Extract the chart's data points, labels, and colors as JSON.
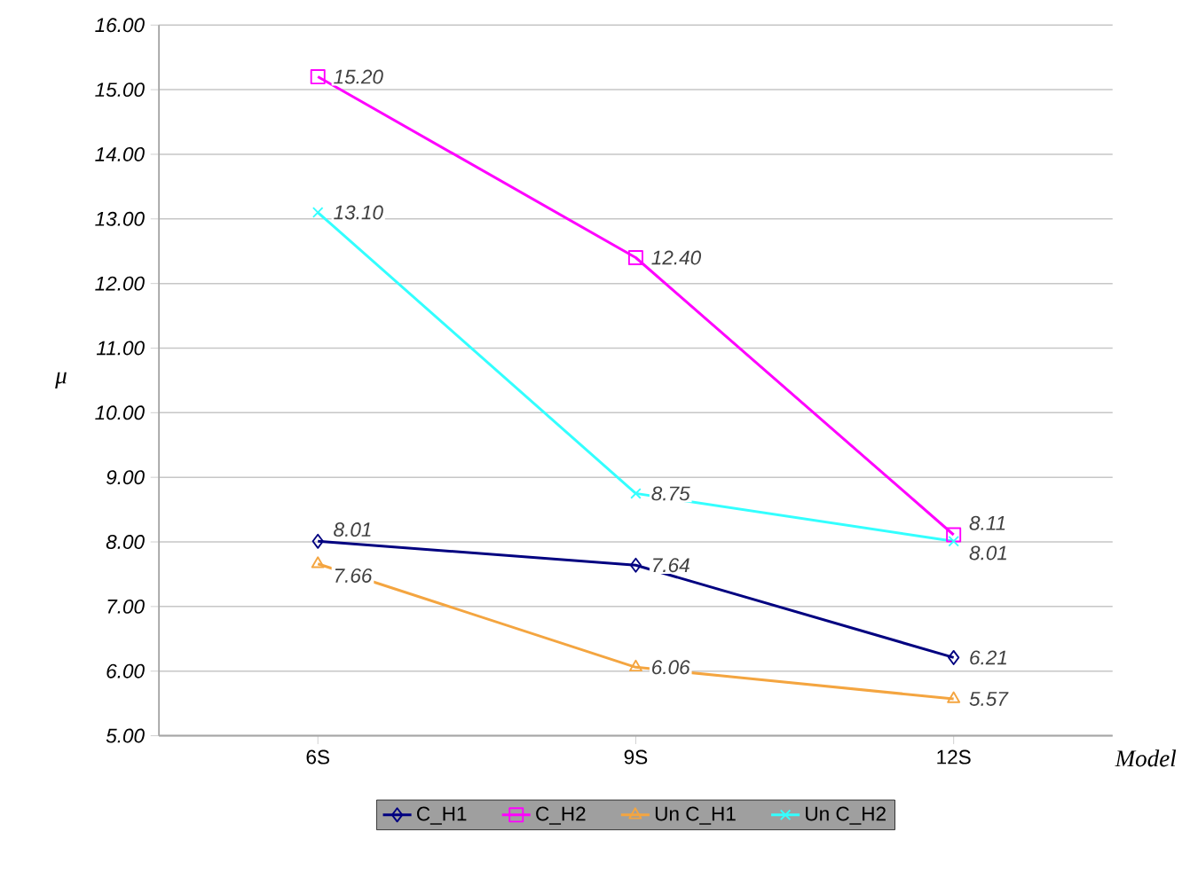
{
  "chart_data": {
    "type": "line",
    "xlabel": "Model",
    "ylabel": "μ",
    "categories": [
      "6S",
      "9S",
      "12S"
    ],
    "series": [
      {
        "name": "C_H1",
        "color": "#000080",
        "marker": "diamond",
        "values": [
          8.01,
          7.64,
          6.21
        ],
        "value_labels": [
          "8.01",
          "7.64",
          "6.21"
        ]
      },
      {
        "name": "C_H2",
        "color": "#ff00ff",
        "marker": "square",
        "values": [
          15.2,
          12.4,
          8.11
        ],
        "value_labels": [
          "15.20",
          "12.40",
          "8.11"
        ]
      },
      {
        "name": "Un C_H1",
        "color": "#f4a540",
        "marker": "triangle",
        "values": [
          7.66,
          6.06,
          5.57
        ],
        "value_labels": [
          "7.66",
          "6.06",
          "5.57"
        ]
      },
      {
        "name": "Un C_H2",
        "color": "#33ffff",
        "marker": "cross",
        "values": [
          13.1,
          8.75,
          8.01
        ],
        "value_labels": [
          "13.10",
          "8.75",
          "8.01"
        ]
      }
    ],
    "ylim": [
      5,
      16
    ],
    "yticks": [
      {
        "value": 5,
        "label": "5.00"
      },
      {
        "value": 6,
        "label": "6.00"
      },
      {
        "value": 7,
        "label": "7.00"
      },
      {
        "value": 8,
        "label": "8.00"
      },
      {
        "value": 9,
        "label": "9.00"
      },
      {
        "value": 10,
        "label": "10.00"
      },
      {
        "value": 11,
        "label": "11.00"
      },
      {
        "value": 12,
        "label": "12.00"
      },
      {
        "value": 13,
        "label": "13.00"
      },
      {
        "value": 14,
        "label": "14.00"
      },
      {
        "value": 15,
        "label": "15.00"
      },
      {
        "value": 16,
        "label": "16.00"
      }
    ],
    "grid": "y",
    "legend": "bottom"
  }
}
